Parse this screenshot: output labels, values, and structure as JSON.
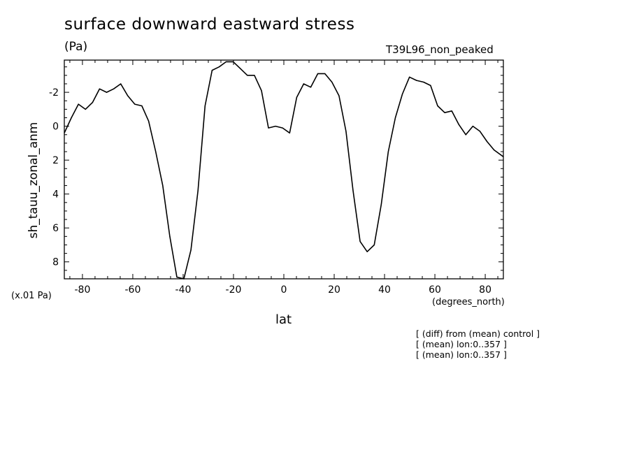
{
  "chart_data": {
    "type": "line",
    "title": "surface downward eastward stress",
    "units": "(Pa)",
    "experiment": "T39L96_non_peaked",
    "ylabel": "sh_tauu_zonal_anm",
    "xlabel": "lat",
    "x_units": "(degrees_north)",
    "y_scale_note": "(x.01 Pa)",
    "notes": [
      "[ (diff) from (mean) control ]",
      "[ (mean) lon:0..357 ]",
      "[ (mean) lon:0..357 ]"
    ],
    "xlim": [
      -87.2,
      87.2
    ],
    "ylim": [
      9.0,
      -3.9
    ],
    "y_inverted": true,
    "x_ticks": [
      -80,
      -60,
      -40,
      -20,
      0,
      20,
      40,
      60,
      80
    ],
    "y_ticks": [
      -2,
      0,
      2,
      4,
      6,
      8
    ],
    "grid": false,
    "x": [
      -87.2,
      -84.4,
      -81.6,
      -78.8,
      -76.0,
      -73.2,
      -70.4,
      -67.6,
      -64.8,
      -62.0,
      -59.2,
      -56.4,
      -53.7,
      -50.9,
      -48.1,
      -45.3,
      -42.5,
      -39.7,
      -36.9,
      -34.1,
      -31.3,
      -28.5,
      -25.7,
      -22.9,
      -20.1,
      -17.3,
      -14.5,
      -11.7,
      -8.9,
      -6.1,
      -3.3,
      -0.5,
      2.3,
      5.1,
      7.9,
      10.7,
      13.5,
      16.3,
      19.1,
      21.9,
      24.7,
      27.5,
      30.3,
      33.1,
      35.9,
      38.7,
      41.5,
      44.3,
      47.1,
      49.9,
      52.7,
      55.5,
      58.3,
      61.1,
      63.9,
      66.7,
      69.5,
      72.3,
      75.1,
      77.9,
      80.7,
      83.5,
      87.2
    ],
    "values": [
      0.4,
      -0.5,
      -1.3,
      -1.0,
      -1.4,
      -2.2,
      -2.0,
      -2.2,
      -2.5,
      -1.8,
      -1.3,
      -1.2,
      -0.3,
      1.5,
      3.5,
      6.5,
      8.9,
      9.0,
      7.3,
      3.8,
      -1.2,
      -3.3,
      -3.5,
      -3.8,
      -3.8,
      -3.4,
      -3.0,
      -3.0,
      -2.1,
      0.1,
      0.0,
      0.1,
      0.4,
      -1.7,
      -2.5,
      -2.3,
      -3.1,
      -3.1,
      -2.6,
      -1.8,
      0.3,
      3.8,
      6.8,
      7.4,
      7.0,
      4.6,
      1.5,
      -0.5,
      -1.9,
      -2.9,
      -2.7,
      -2.6,
      -2.4,
      -1.2,
      -0.8,
      -0.9,
      -0.1,
      0.5,
      0.0,
      0.3,
      0.9,
      1.4,
      1.8
    ],
    "colors": {
      "line": "#000000",
      "axis": "#000000",
      "background": "#ffffff"
    }
  }
}
